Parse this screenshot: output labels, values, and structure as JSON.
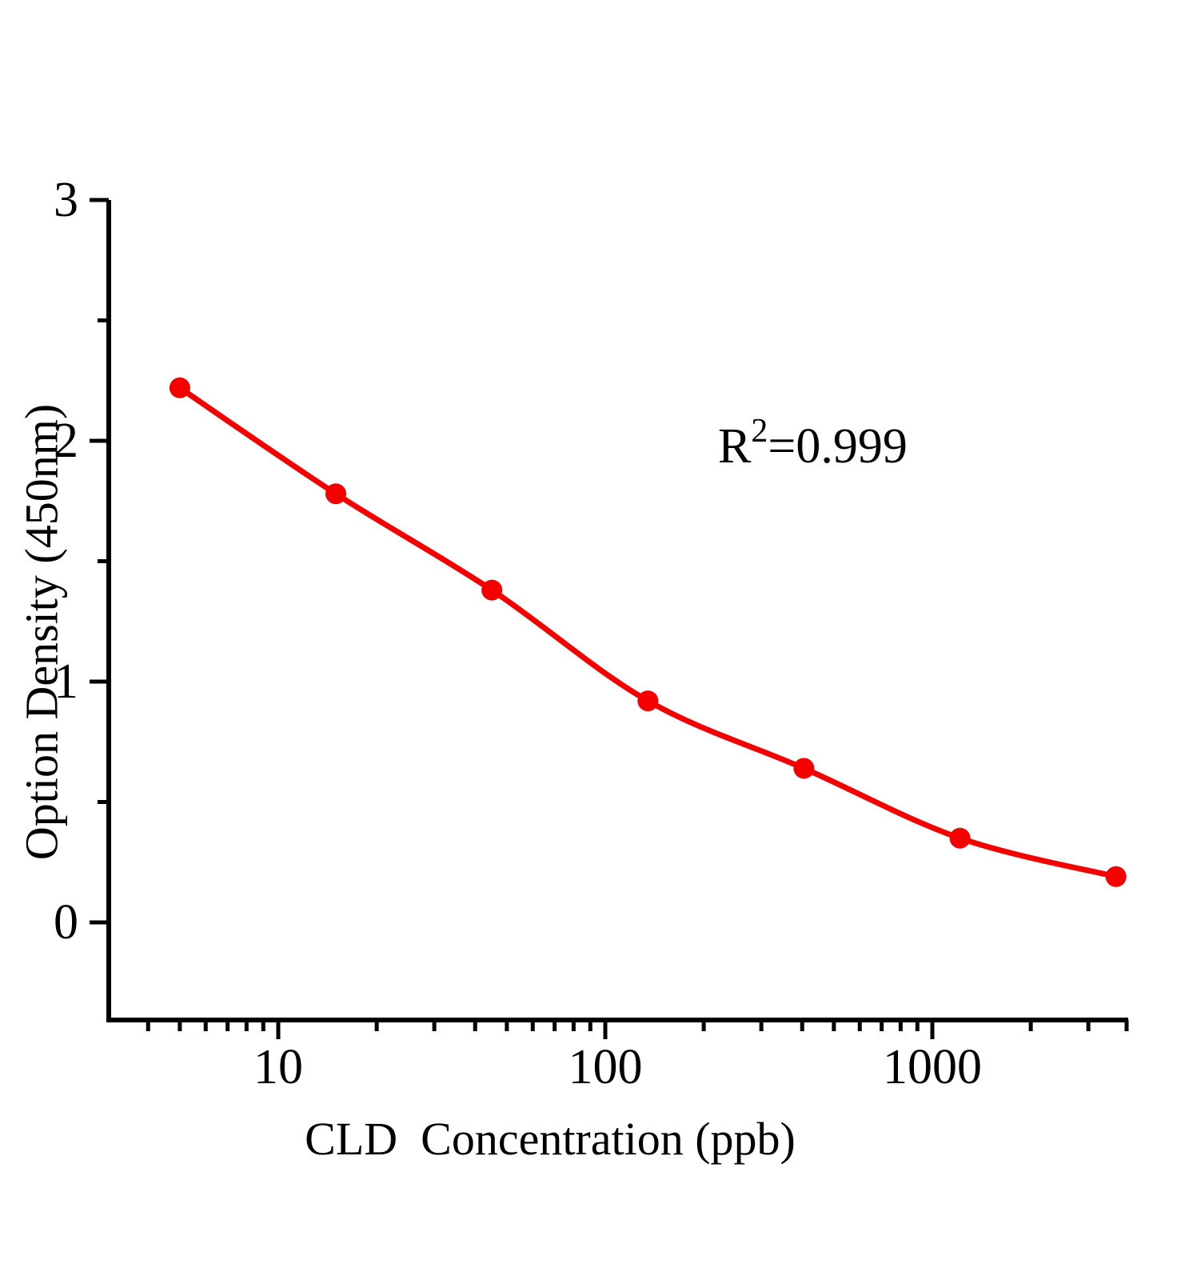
{
  "figure": {
    "background": "#ffffff"
  },
  "chart_data": {
    "type": "scatter",
    "title": "",
    "xlabel": "CLD  Concentration（ppb）",
    "ylabel": "Option Density（450nm）",
    "x_scale": "log",
    "xlim": [
      3,
      4000
    ],
    "ylim": [
      0,
      3
    ],
    "x_major_ticks": [
      10,
      100,
      1000
    ],
    "x_major_tick_labels": [
      "10",
      "100",
      "1000"
    ],
    "y_major_ticks": [
      3,
      2,
      1,
      0
    ],
    "y_major_tick_labels": [
      "3",
      "2",
      "1",
      "0"
    ],
    "y_minor_ticks": [
      2.5,
      1.5,
      0.5
    ],
    "grid": false,
    "legend": null,
    "axis_color": "#000000",
    "series": [
      {
        "name": "standard_curve",
        "color": "#f50000",
        "marker": "circle",
        "line": "smooth",
        "x": [
          5,
          15,
          45,
          135,
          405,
          1215,
          3645
        ],
        "y": [
          2.22,
          1.78,
          1.38,
          0.92,
          0.64,
          0.35,
          0.19
        ]
      }
    ],
    "annotation": {
      "base": "R",
      "exponent": "2",
      "rest": "=0.999",
      "r_squared": 0.999
    }
  }
}
